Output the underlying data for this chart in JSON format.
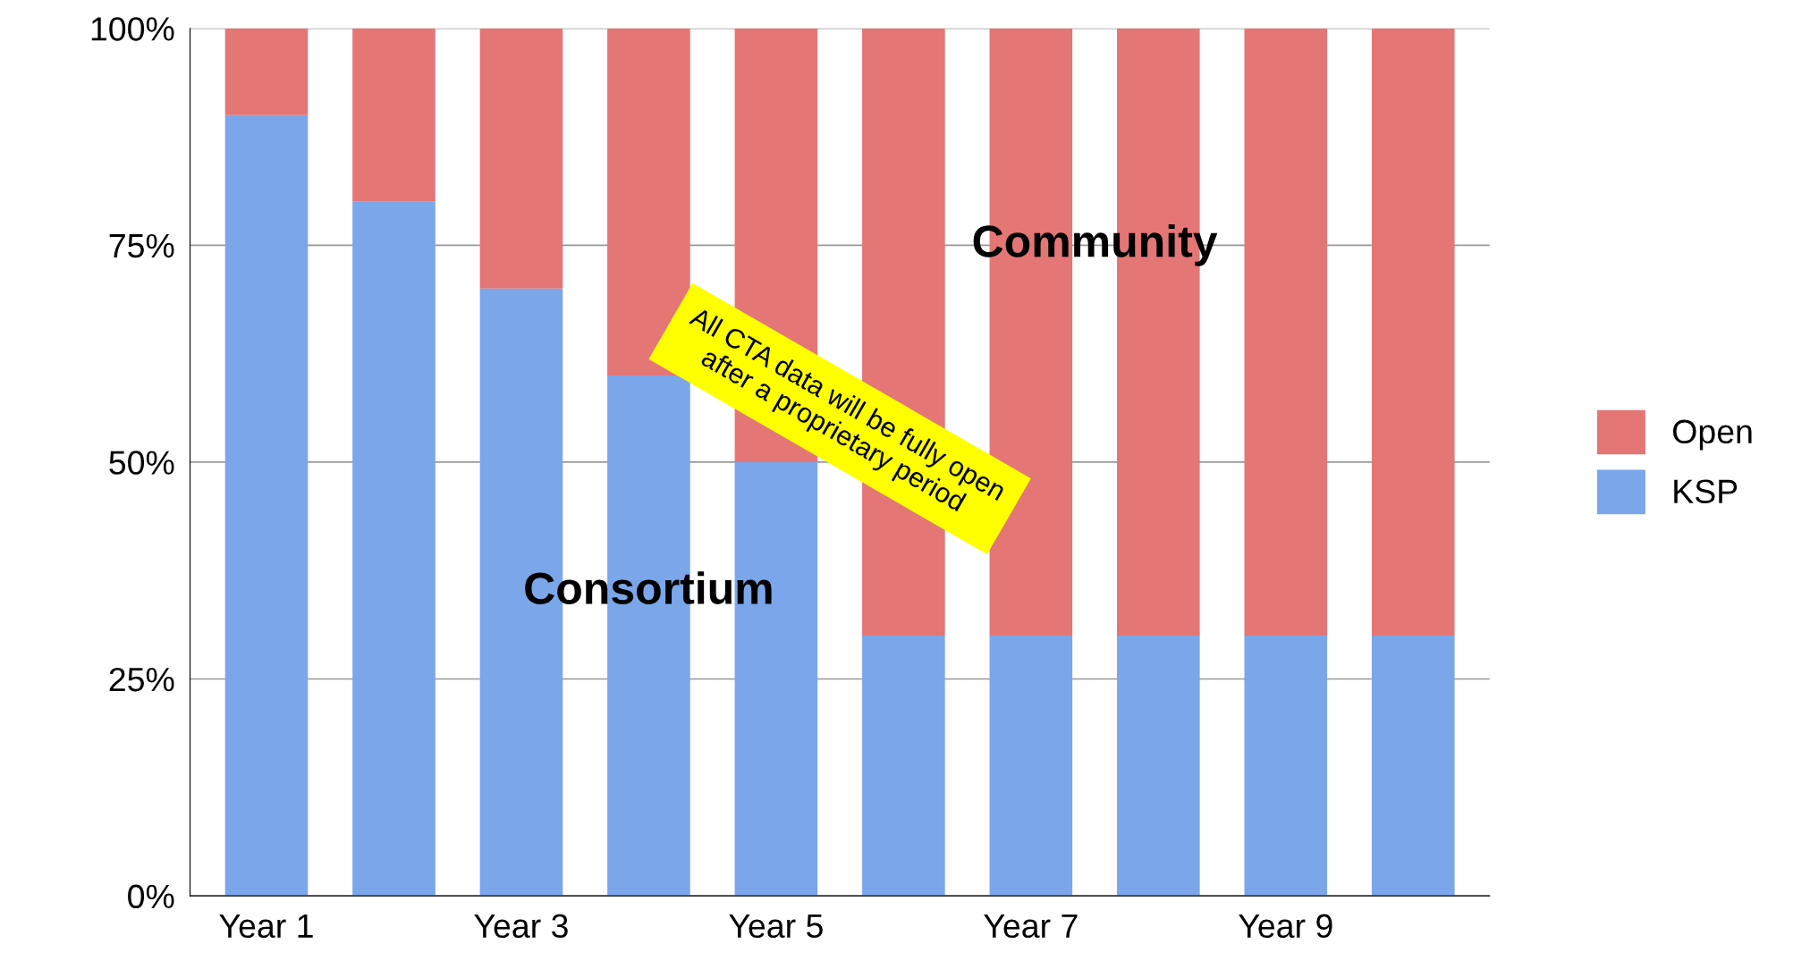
{
  "chart_data": {
    "type": "bar",
    "stacked": true,
    "categories": [
      "Year 1",
      null,
      "Year 3",
      null,
      "Year 5",
      null,
      "Year 7",
      null,
      "Year 9",
      null
    ],
    "series": [
      {
        "name": "KSP",
        "color": "#7ba6ea",
        "values": [
          90,
          80,
          70,
          60,
          50,
          30,
          30,
          30,
          30,
          30
        ]
      },
      {
        "name": "Open",
        "color": "#e57676",
        "values": [
          10,
          20,
          30,
          40,
          50,
          70,
          70,
          70,
          70,
          70
        ]
      }
    ],
    "ylim": [
      0,
      100
    ],
    "yticks": [
      {
        "value": 0,
        "label": "0%"
      },
      {
        "value": 25,
        "label": "25%"
      },
      {
        "value": 50,
        "label": "50%"
      },
      {
        "value": 75,
        "label": "75%"
      },
      {
        "value": 100,
        "label": "100%"
      }
    ],
    "grid": "y",
    "legend": "right",
    "annotations": [
      "Consortium",
      "Community",
      "All CTA data will be fully open\nafter a proprietary period"
    ]
  }
}
